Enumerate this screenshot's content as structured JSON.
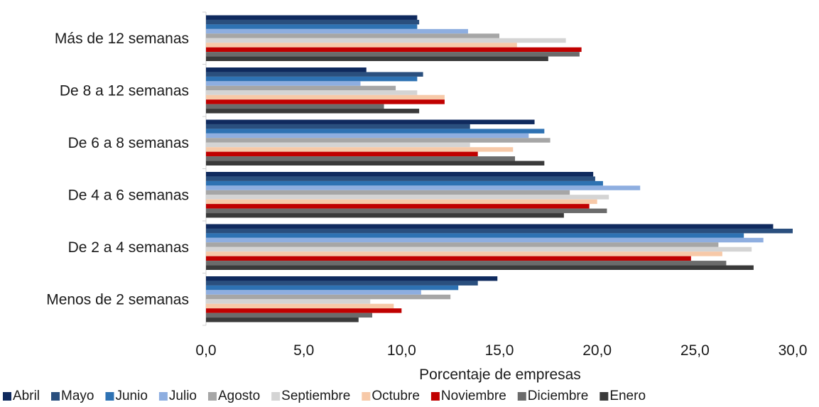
{
  "chart_data": {
    "type": "bar",
    "orientation": "horizontal",
    "categories": [
      "Más de 12 semanas",
      "De 8 a 12 semanas",
      "De 6 a 8 semanas",
      "De 4 a 6 semanas",
      "De 2 a 4 semanas",
      "Menos de 2 semanas"
    ],
    "series": [
      {
        "name": "Abril",
        "color": "#0f2a5e",
        "values": [
          10.8,
          8.2,
          16.8,
          19.8,
          29.0,
          14.9
        ]
      },
      {
        "name": "Mayo",
        "color": "#2a4f7e",
        "values": [
          10.9,
          11.1,
          13.5,
          19.9,
          30.0,
          13.9
        ]
      },
      {
        "name": "Junio",
        "color": "#2e72b3",
        "values": [
          10.8,
          10.8,
          17.3,
          20.3,
          27.5,
          12.9
        ]
      },
      {
        "name": "Julio",
        "color": "#8eaee0",
        "values": [
          13.4,
          7.9,
          16.5,
          22.2,
          28.5,
          11.0
        ]
      },
      {
        "name": "Agosto",
        "color": "#a6a6a6",
        "values": [
          15.0,
          9.7,
          17.6,
          18.6,
          26.2,
          12.5
        ]
      },
      {
        "name": "Septiembre",
        "color": "#d4d4d4",
        "values": [
          18.4,
          10.8,
          13.5,
          20.6,
          27.9,
          8.4
        ]
      },
      {
        "name": "Octubre",
        "color": "#f7c9a8",
        "values": [
          15.9,
          12.2,
          15.7,
          20.0,
          26.4,
          9.6
        ]
      },
      {
        "name": "Noviembre",
        "color": "#c00000",
        "values": [
          19.2,
          12.2,
          13.9,
          19.6,
          24.8,
          10.0
        ]
      },
      {
        "name": "Diciembre",
        "color": "#6b6b6b",
        "values": [
          19.1,
          9.1,
          15.8,
          20.5,
          26.6,
          8.5
        ]
      },
      {
        "name": "Enero",
        "color": "#3a3a3a",
        "values": [
          17.5,
          10.9,
          17.3,
          18.3,
          28.0,
          7.8
        ]
      }
    ],
    "xlim": [
      0,
      30
    ],
    "xticks": [
      "0,0",
      "5,0",
      "10,0",
      "15,0",
      "20,0",
      "25,0",
      "30,0"
    ],
    "xlabel": "Porcentaje de empresas",
    "ylabel": "",
    "title": "",
    "grid": false,
    "legend_position": "bottom"
  }
}
